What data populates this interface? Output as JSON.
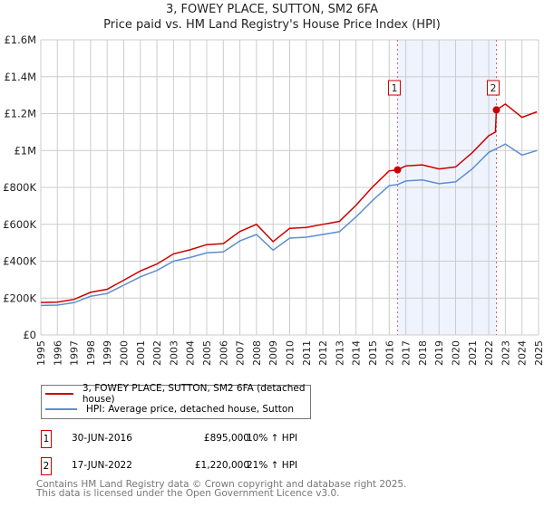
{
  "chart_data": {
    "type": "line",
    "title": "3, FOWEY PLACE, SUTTON, SM2 6FA",
    "subtitle": "Price paid vs. HM Land Registry's House Price Index (HPI)",
    "xlim": [
      1995,
      2025
    ],
    "ylim": [
      0,
      1600000
    ],
    "xticks": [
      "1995",
      "1996",
      "1997",
      "1998",
      "1999",
      "2000",
      "2001",
      "2002",
      "2003",
      "2004",
      "2005",
      "2006",
      "2007",
      "2008",
      "2009",
      "2010",
      "2011",
      "2012",
      "2013",
      "2014",
      "2015",
      "2016",
      "2017",
      "2018",
      "2019",
      "2020",
      "2021",
      "2022",
      "2023",
      "2024",
      "2025"
    ],
    "yticks": [
      {
        "v": 0,
        "label": "£0"
      },
      {
        "v": 200000,
        "label": "£200K"
      },
      {
        "v": 400000,
        "label": "£400K"
      },
      {
        "v": 600000,
        "label": "£600K"
      },
      {
        "v": 800000,
        "label": "£800K"
      },
      {
        "v": 1000000,
        "label": "£1M"
      },
      {
        "v": 1200000,
        "label": "£1.2M"
      },
      {
        "v": 1400000,
        "label": "£1.4M"
      },
      {
        "v": 1600000,
        "label": "£1.6M"
      }
    ],
    "grid": true,
    "series": [
      {
        "name": "3, FOWEY PLACE, SUTTON, SM2 6FA (detached house)",
        "color": "#cc0000",
        "x": [
          1995,
          1996,
          1997,
          1998,
          1999,
          2000,
          2001,
          2002,
          2003,
          2004,
          2005,
          2006,
          2007,
          2008,
          2009,
          2010,
          2011,
          2012,
          2013,
          2014,
          2015,
          2016,
          2016.5,
          2017,
          2018,
          2019,
          2020,
          2021,
          2022,
          2022.4,
          2022.46,
          2023,
          2024,
          2024.9
        ],
        "y": [
          176000,
          178000,
          193000,
          231000,
          248000,
          297000,
          347000,
          385000,
          440000,
          462000,
          490000,
          495000,
          561000,
          600000,
          506000,
          578000,
          583000,
          600000,
          616000,
          704000,
          803000,
          890000,
          895000,
          917000,
          922000,
          900000,
          911000,
          988000,
          1080000,
          1100000,
          1220000,
          1252000,
          1180000,
          1210000
        ]
      },
      {
        "name": "HPI: Average price, detached house, Sutton",
        "color": "#5b8fd0",
        "x": [
          1995,
          1996,
          1997,
          1998,
          1999,
          2000,
          2001,
          2002,
          2003,
          2004,
          2005,
          2006,
          2007,
          2008,
          2009,
          2010,
          2011,
          2012,
          2013,
          2014,
          2015,
          2016,
          2016.5,
          2017,
          2018,
          2019,
          2020,
          2021,
          2022,
          2022.46,
          2023,
          2024,
          2024.9
        ],
        "y": [
          160000,
          162000,
          175000,
          210000,
          225000,
          270000,
          315000,
          350000,
          400000,
          420000,
          445000,
          450000,
          510000,
          545000,
          460000,
          525000,
          530000,
          545000,
          560000,
          640000,
          730000,
          810000,
          815000,
          835000,
          840000,
          820000,
          830000,
          900000,
          990000,
          1010000,
          1035000,
          975000,
          1000000
        ]
      }
    ],
    "sales": [
      {
        "id": "1",
        "x": 2016.5,
        "price": 895000
      },
      {
        "id": "2",
        "x": 2022.46,
        "price": 1220000
      }
    ],
    "legend_placement": "below"
  },
  "transactions": [
    {
      "id": "1",
      "date": "30-JUN-2016",
      "price": "£895,000",
      "hpi": "10% ↑ HPI"
    },
    {
      "id": "2",
      "date": "17-JUN-2022",
      "price": "£1,220,000",
      "hpi": "21% ↑ HPI"
    }
  ],
  "footer": {
    "line1": "Contains HM Land Registry data © Crown copyright and database right 2025.",
    "line2": "This data is licensed under the Open Government Licence v3.0."
  }
}
